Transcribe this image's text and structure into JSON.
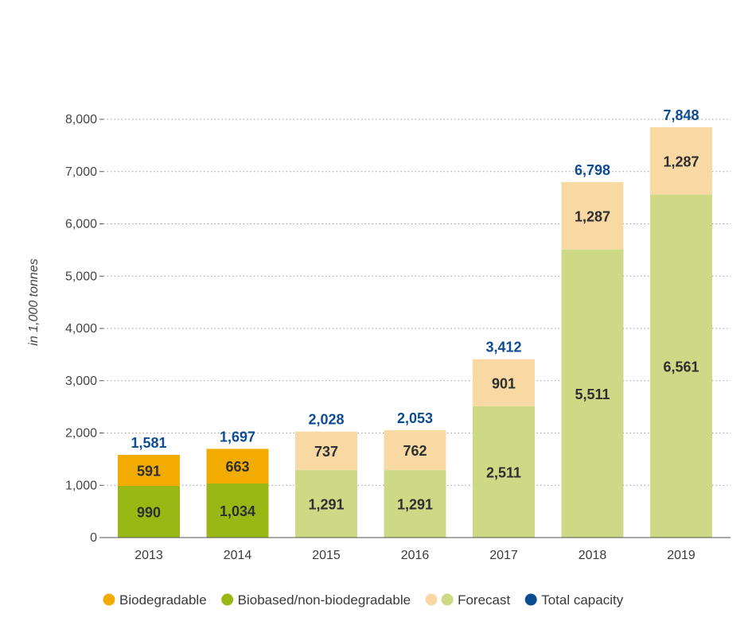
{
  "chart_data": {
    "type": "bar",
    "stacked": true,
    "title": "",
    "xlabel": "",
    "ylabel": "in 1,000 tonnes",
    "ylim": [
      0,
      8000
    ],
    "yticks": [
      0,
      1000,
      2000,
      3000,
      4000,
      5000,
      6000,
      7000,
      8000
    ],
    "ytick_labels": [
      "0",
      "1,000",
      "2,000",
      "3,000",
      "4,000",
      "5,000",
      "6,000",
      "7,000",
      "8,000"
    ],
    "grid": "horizontal dotted",
    "categories": [
      "2013",
      "2014",
      "2015",
      "2016",
      "2017",
      "2018",
      "2019"
    ],
    "series": [
      {
        "name": "Biobased/non-biodegradable",
        "role": "bottom",
        "values": [
          990,
          1034,
          1291,
          1291,
          2511,
          5511,
          6561
        ],
        "labels": [
          "990",
          "1,034",
          "1,291",
          "1,291",
          "2,511",
          "5,511",
          "6,561"
        ]
      },
      {
        "name": "Biodegradable",
        "role": "top",
        "values": [
          591,
          663,
          737,
          762,
          901,
          1287,
          1287
        ],
        "labels": [
          "591",
          "663",
          "737",
          "762",
          "901",
          "1,287",
          "1,287"
        ]
      }
    ],
    "forecast_from_index": 2,
    "totals": {
      "values": [
        1581,
        1697,
        2028,
        2053,
        3412,
        6798,
        7848
      ],
      "labels": [
        "1,581",
        "1,697",
        "2,028",
        "2,053",
        "3,412",
        "6,798",
        "7,848"
      ]
    },
    "colors": {
      "biodegradable": "#f2ab00",
      "biobased": "#9ab814",
      "forecast_biodegradable": "#f8d9a4",
      "forecast_biobased": "#cdd985",
      "total": "#0e4c92",
      "grid": "#9a9a9a",
      "axis": "#555555"
    },
    "legend": {
      "placement": "bottom",
      "items": [
        {
          "label": "Biodegradable",
          "swatches": [
            "biodegradable"
          ]
        },
        {
          "label": "Biobased/non-biodegradable",
          "swatches": [
            "biobased"
          ]
        },
        {
          "label": "Forecast",
          "swatches": [
            "forecast_biodegradable",
            "forecast_biobased"
          ]
        },
        {
          "label": "Total capacity",
          "swatches": [
            "total"
          ]
        }
      ]
    }
  }
}
